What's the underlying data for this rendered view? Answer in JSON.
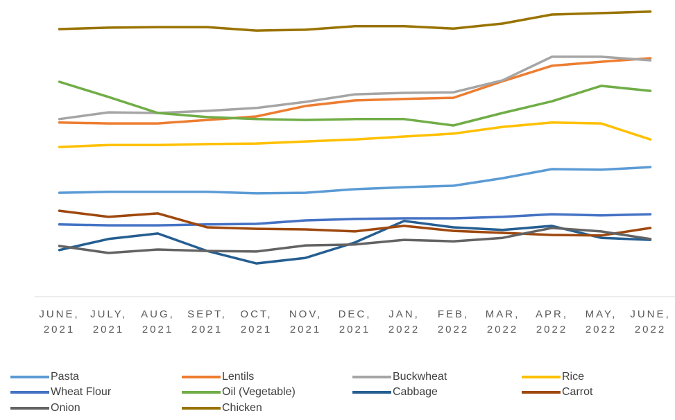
{
  "chart_data": {
    "type": "line",
    "categories": [
      "JUNE, 2021",
      "JULY, 2021",
      "AUG, 2021",
      "SEPT, 2021",
      "OCT, 2021",
      "NOV, 2021",
      "DEC, 2021",
      "JAN, 2022",
      "FEB, 2022",
      "MAR, 2022",
      "APR, 2022",
      "MAY, 2022",
      "JUNE, 2022"
    ],
    "ylim": [
      0,
      100
    ],
    "series": [
      {
        "name": "Pasta",
        "color": "#5b9bd5",
        "values": [
          35.7,
          36.0,
          36.0,
          36.0,
          35.5,
          35.7,
          36.9,
          37.6,
          38.1,
          40.7,
          43.8,
          43.6,
          44.5
        ]
      },
      {
        "name": "Lentils",
        "color": "#ed7d31",
        "values": [
          59.8,
          59.5,
          59.5,
          60.7,
          61.9,
          65.5,
          67.4,
          67.9,
          68.3,
          74.0,
          79.3,
          80.7,
          81.9
        ]
      },
      {
        "name": "Buckwheat",
        "color": "#a5a5a5",
        "values": [
          61.0,
          63.3,
          63.1,
          63.8,
          64.8,
          66.9,
          69.5,
          70.0,
          70.2,
          74.3,
          82.4,
          82.4,
          81.2
        ]
      },
      {
        "name": "Rice",
        "color": "#ffc000",
        "values": [
          51.4,
          52.1,
          52.1,
          52.4,
          52.6,
          53.3,
          54.0,
          55.0,
          56.0,
          58.3,
          59.8,
          59.5,
          54.0
        ]
      },
      {
        "name": "Wheat Flour",
        "color": "#4472c4",
        "values": [
          24.8,
          24.5,
          24.5,
          24.8,
          25.0,
          26.2,
          26.7,
          26.9,
          26.9,
          27.4,
          28.3,
          27.9,
          28.3
        ]
      },
      {
        "name": "Oil (Vegetable)",
        "color": "#70ad47",
        "values": [
          73.8,
          68.6,
          63.1,
          61.7,
          61.0,
          60.7,
          61.0,
          61.0,
          58.8,
          63.1,
          67.1,
          72.4,
          70.7
        ]
      },
      {
        "name": "Cabbage",
        "color": "#255e91",
        "values": [
          16.0,
          19.8,
          21.7,
          15.7,
          11.4,
          13.3,
          18.6,
          26.0,
          23.8,
          22.9,
          24.3,
          20.2,
          19.5
        ]
      },
      {
        "name": "Carrot",
        "color": "#9e480e",
        "values": [
          29.5,
          27.4,
          28.6,
          23.8,
          23.3,
          23.1,
          22.4,
          24.3,
          22.6,
          21.9,
          21.2,
          21.0,
          23.6
        ]
      },
      {
        "name": "Onion",
        "color": "#636363",
        "values": [
          17.4,
          15.0,
          16.2,
          15.7,
          15.5,
          17.6,
          17.9,
          19.5,
          19.0,
          20.2,
          23.6,
          22.4,
          19.8
        ]
      },
      {
        "name": "Chicken",
        "color": "#997300",
        "values": [
          91.9,
          92.4,
          92.6,
          92.6,
          91.4,
          91.7,
          92.9,
          92.9,
          92.1,
          93.8,
          96.9,
          97.4,
          97.9
        ]
      }
    ]
  }
}
